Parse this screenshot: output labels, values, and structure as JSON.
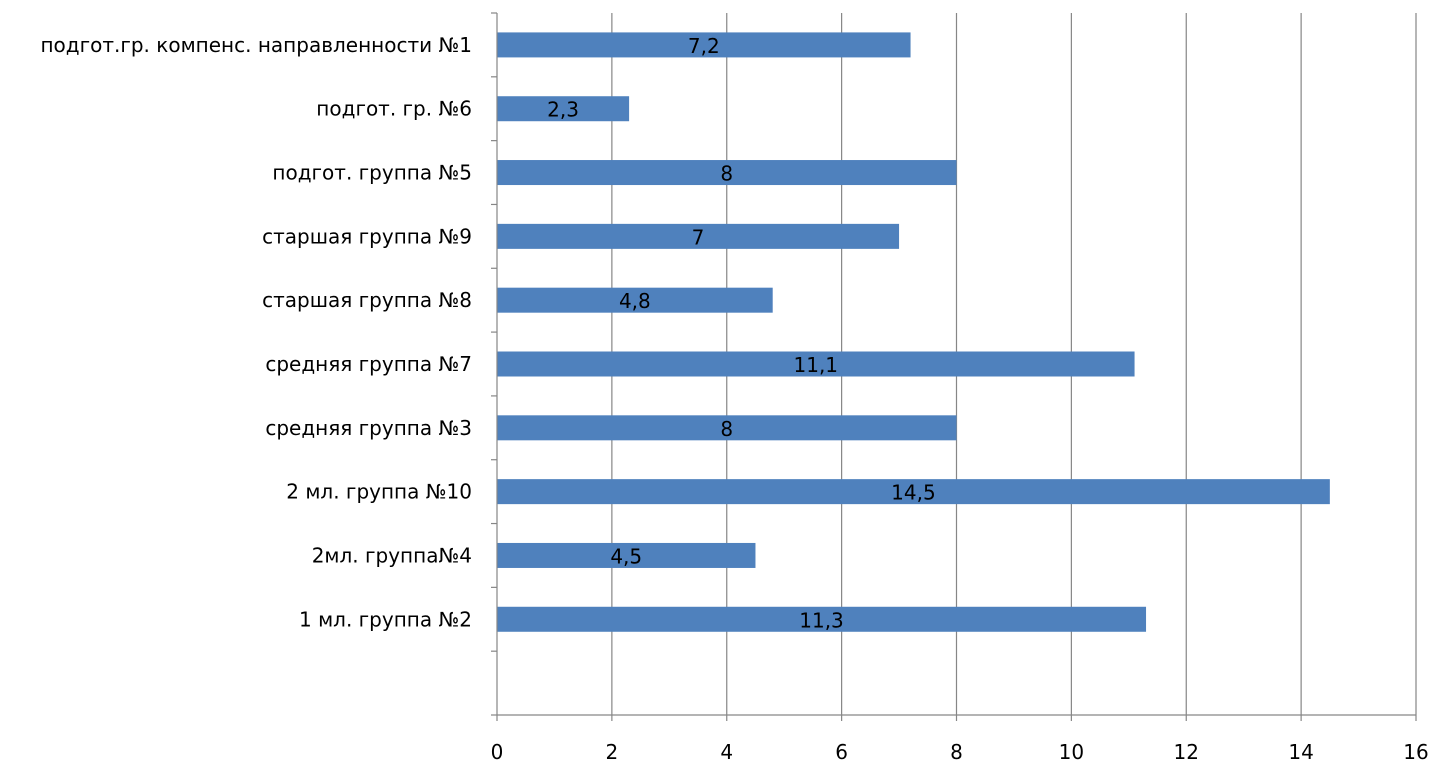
{
  "chart_data": {
    "type": "bar",
    "orientation": "horizontal",
    "categories": [
      "1 мл. группа №2",
      "2мл. группа№4",
      "2 мл. группа №10",
      "средняя группа №3",
      "средняя группа №7",
      "старшая группа №8",
      "старшая группа №9",
      "подгот. группа №5",
      "подгот. гр. №6",
      "подгот.гр. компенс. направленности №1"
    ],
    "values": [
      11.3,
      4.5,
      14.5,
      8,
      11.1,
      4.8,
      7,
      8,
      2.3,
      7.2
    ],
    "data_labels": [
      "11,3",
      "4,5",
      "14,5",
      "8",
      "11,1",
      "4,8",
      "7",
      "8",
      "2,3",
      "7,2"
    ],
    "xlim": [
      0,
      16
    ],
    "x_ticks": [
      0,
      2,
      4,
      6,
      8,
      10,
      12,
      14,
      16
    ],
    "x_tick_labels": [
      "0",
      "2",
      "4",
      "6",
      "8",
      "10",
      "12",
      "14",
      "16"
    ],
    "grid": "vertical major gridlines",
    "legend": "none",
    "colors": {
      "bar": "#4F81BD",
      "grid": "#868686",
      "axis": "#868686"
    }
  }
}
